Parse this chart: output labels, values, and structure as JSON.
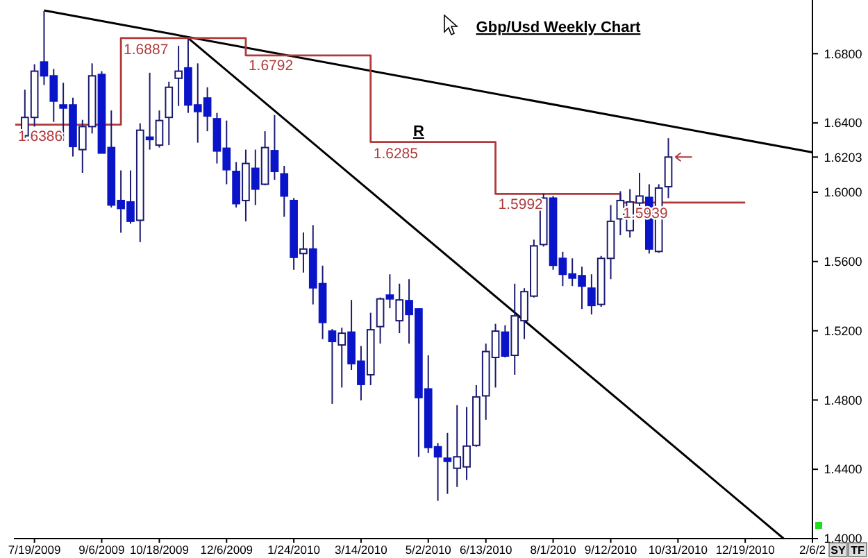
{
  "chart_data": {
    "type": "candlestick",
    "title": "Gbp/Usd Weekly Chart",
    "x": [
      "2009-07-12",
      "2009-07-19",
      "2009-07-26",
      "2009-08-02",
      "2009-08-09",
      "2009-08-16",
      "2009-08-23",
      "2009-08-30",
      "2009-09-06",
      "2009-09-13",
      "2009-09-20",
      "2009-09-27",
      "2009-10-04",
      "2009-10-11",
      "2009-10-18",
      "2009-10-25",
      "2009-11-01",
      "2009-11-08",
      "2009-11-15",
      "2009-11-22",
      "2009-11-29",
      "2009-12-06",
      "2009-12-13",
      "2009-12-20",
      "2009-12-27",
      "2010-01-03",
      "2010-01-10",
      "2010-01-17",
      "2010-01-24",
      "2010-01-31",
      "2010-02-07",
      "2010-02-14",
      "2010-02-21",
      "2010-02-28",
      "2010-03-07",
      "2010-03-14",
      "2010-03-21",
      "2010-03-28",
      "2010-04-04",
      "2010-04-11",
      "2010-04-18",
      "2010-04-25",
      "2010-05-02",
      "2010-05-09",
      "2010-05-16",
      "2010-05-23",
      "2010-05-30",
      "2010-06-06",
      "2010-06-13",
      "2010-06-20",
      "2010-06-27",
      "2010-07-04",
      "2010-07-11",
      "2010-07-18",
      "2010-07-25",
      "2010-08-01",
      "2010-08-08",
      "2010-08-15",
      "2010-08-22",
      "2010-08-29",
      "2010-09-05",
      "2010-09-12",
      "2010-09-19",
      "2010-09-26",
      "2010-10-03",
      "2010-10-10",
      "2010-10-17",
      "2010-10-24"
    ],
    "ohlc": [
      [
        1.6326,
        1.6592,
        1.6312,
        1.6432
      ],
      [
        1.6432,
        1.6739,
        1.6379,
        1.6699
      ],
      [
        1.6752,
        1.7046,
        1.6619,
        1.6672
      ],
      [
        1.6672,
        1.6712,
        1.6406,
        1.6526
      ],
      [
        1.6504,
        1.6632,
        1.6298,
        1.6486
      ],
      [
        1.6504,
        1.6546,
        1.6206,
        1.6264
      ],
      [
        1.6246,
        1.6418,
        1.6112,
        1.6379
      ],
      [
        1.6379,
        1.6744,
        1.6339,
        1.6672
      ],
      [
        1.668,
        1.6699,
        1.6226,
        1.6226
      ],
      [
        1.6258,
        1.6472,
        1.5912,
        1.5926
      ],
      [
        1.5952,
        1.6126,
        1.5766,
        1.5906
      ],
      [
        1.5944,
        1.6126,
        1.5818,
        1.5832
      ],
      [
        1.5838,
        1.6398,
        1.5712,
        1.6358
      ],
      [
        1.6318,
        1.669,
        1.6246,
        1.6304
      ],
      [
        1.6272,
        1.6472,
        1.6258,
        1.6414
      ],
      [
        1.6432,
        1.6638,
        1.6272,
        1.6606
      ],
      [
        1.6658,
        1.6846,
        1.6498,
        1.6699
      ],
      [
        1.6718,
        1.6887,
        1.6458,
        1.6504
      ],
      [
        1.6504,
        1.6744,
        1.6286,
        1.6466
      ],
      [
        1.6544,
        1.6606,
        1.6352,
        1.644
      ],
      [
        1.6424,
        1.6458,
        1.6166,
        1.6238
      ],
      [
        1.6254,
        1.6414,
        1.6046,
        1.613
      ],
      [
        1.612,
        1.6174,
        1.5912,
        1.5934
      ],
      [
        1.5952,
        1.6246,
        1.5832,
        1.6166
      ],
      [
        1.6138,
        1.6246,
        1.5926,
        1.6018
      ],
      [
        1.6046,
        1.6352,
        1.604,
        1.6258
      ],
      [
        1.624,
        1.6446,
        1.6072,
        1.612
      ],
      [
        1.6106,
        1.6152,
        1.5858,
        1.5978
      ],
      [
        1.5952,
        1.5966,
        1.5552,
        1.5624
      ],
      [
        1.5646,
        1.5768,
        1.5536,
        1.5672
      ],
      [
        1.5672,
        1.581,
        1.5352,
        1.5448
      ],
      [
        1.5472,
        1.5576,
        1.5152,
        1.5248
      ],
      [
        1.5198,
        1.521,
        1.4778,
        1.5138
      ],
      [
        1.5118,
        1.5218,
        1.4872,
        1.5186
      ],
      [
        1.5192,
        1.5378,
        1.4974,
        1.501
      ],
      [
        1.5024,
        1.5112,
        1.4798,
        1.489
      ],
      [
        1.4946,
        1.5304,
        1.4886,
        1.5206
      ],
      [
        1.5224,
        1.5392,
        1.5126,
        1.5384
      ],
      [
        1.5406,
        1.5526,
        1.533,
        1.5384
      ],
      [
        1.5258,
        1.5472,
        1.5186,
        1.5378
      ],
      [
        1.5374,
        1.5498,
        1.5126,
        1.5294
      ],
      [
        1.5326,
        1.533,
        1.4472,
        1.4814
      ],
      [
        1.4864,
        1.5058,
        1.4494,
        1.4526
      ],
      [
        1.453,
        1.4552,
        1.4218,
        1.4472
      ],
      [
        1.4464,
        1.461,
        1.4258,
        1.4446
      ],
      [
        1.4406,
        1.477,
        1.4298,
        1.4472
      ],
      [
        1.4414,
        1.476,
        1.4338,
        1.4534
      ],
      [
        1.4538,
        1.4886,
        1.453,
        1.4818
      ],
      [
        1.4824,
        1.5126,
        1.4686,
        1.508
      ],
      [
        1.5046,
        1.524,
        1.4872,
        1.5198
      ],
      [
        1.5192,
        1.5232,
        1.5046,
        1.5054
      ],
      [
        1.5058,
        1.5472,
        1.4946,
        1.5286
      ],
      [
        1.5258,
        1.5446,
        1.5152,
        1.5426
      ],
      [
        1.54,
        1.5726,
        1.5392,
        1.569
      ],
      [
        1.5698,
        1.5992,
        1.5686,
        1.5966
      ],
      [
        1.5966,
        1.5978,
        1.5552,
        1.5578
      ],
      [
        1.5618,
        1.5656,
        1.5458,
        1.5526
      ],
      [
        1.5528,
        1.5618,
        1.5458,
        1.5504
      ],
      [
        1.5518,
        1.557,
        1.5326,
        1.5458
      ],
      [
        1.5446,
        1.5526,
        1.5294,
        1.5346
      ],
      [
        1.5352,
        1.5632,
        1.5338,
        1.5618
      ],
      [
        1.5618,
        1.5926,
        1.5498,
        1.5832
      ],
      [
        1.5846,
        1.6006,
        1.5752,
        1.5952
      ],
      [
        1.5778,
        1.6018,
        1.5738,
        1.5944
      ],
      [
        1.5938,
        1.6112,
        1.5858,
        1.5978
      ],
      [
        1.597,
        1.6046,
        1.5646,
        1.5672
      ],
      [
        1.5658,
        1.6046,
        1.565,
        1.6024
      ],
      [
        1.6032,
        1.6312,
        1.5966,
        1.6203
      ]
    ],
    "series": [
      {
        "type": "line",
        "x": [
          "2009-07-26",
          "2011-02-06"
        ],
        "values": [
          1.705,
          1.623
        ],
        "color": "#000000"
      },
      {
        "type": "line",
        "x": [
          "2009-11-08",
          "2011-01-16"
        ],
        "values": [
          1.689,
          1.4
        ],
        "color": "#000000"
      },
      {
        "type": "step",
        "x": [
          "2009-07-05",
          "2009-09-20",
          "2009-12-20",
          "2010-03-21",
          "2010-06-20",
          "2010-09-19",
          "2010-12-19"
        ],
        "values": [
          1.639,
          1.689,
          1.679,
          1.629,
          1.599,
          1.594,
          1.594
        ],
        "color": "#b03a3a"
      }
    ],
    "annotations": [
      {
        "text": "1.6386",
        "x": "2009-07-05",
        "y": 1.6386
      },
      {
        "text": "1.6887",
        "x": "2009-09-20",
        "y": 1.6887
      },
      {
        "text": "1.6792",
        "x": "2009-12-20",
        "y": 1.6792
      },
      {
        "text": "1.6285",
        "x": "2010-03-21",
        "y": 1.6285
      },
      {
        "text": "R",
        "x": "2010-04-25",
        "y": 1.6285
      },
      {
        "text": "1.5992",
        "x": "2010-06-20",
        "y": 1.5992
      },
      {
        "text": "1.5939",
        "x": "2010-09-19",
        "y": 1.5939
      },
      "SY",
      "TF"
    ],
    "xlim": [
      "2009-07-04",
      "2011-02-06"
    ],
    "xticks": [
      {
        "value": "2009-07-19",
        "label": "7/19/2009"
      },
      {
        "value": "2009-09-06",
        "label": "9/6/2009"
      },
      {
        "value": "2009-10-18",
        "label": "10/18/2009"
      },
      {
        "value": "2009-12-06",
        "label": "12/6/2009"
      },
      {
        "value": "2010-01-24",
        "label": "1/24/2010"
      },
      {
        "value": "2010-03-14",
        "label": "3/14/2010"
      },
      {
        "value": "2010-05-02",
        "label": "5/2/2010"
      },
      {
        "value": "2010-06-13",
        "label": "6/13/2010"
      },
      {
        "value": "2010-08-01",
        "label": "8/1/2010"
      },
      {
        "value": "2010-09-12",
        "label": "9/12/2010"
      },
      {
        "value": "2010-10-31",
        "label": "10/31/2010"
      },
      {
        "value": "2010-12-19",
        "label": "12/19/2010"
      },
      {
        "value": "2011-02-06",
        "label": "2/6/2"
      }
    ],
    "ylim": [
      1.4,
      1.711
    ],
    "yticks": [
      {
        "value": 1.4,
        "label": "1.4000"
      },
      {
        "value": 1.44,
        "label": "1.4400"
      },
      {
        "value": 1.48,
        "label": "1.4800"
      },
      {
        "value": 1.52,
        "label": "1.5200"
      },
      {
        "value": 1.56,
        "label": "1.5600"
      },
      {
        "value": 1.6,
        "label": "1.6000"
      },
      {
        "value": 1.6203,
        "label": "1.6203"
      },
      {
        "value": 1.64,
        "label": "1.6400"
      },
      {
        "value": 1.68,
        "label": "1.6800"
      }
    ],
    "grid": false
  }
}
